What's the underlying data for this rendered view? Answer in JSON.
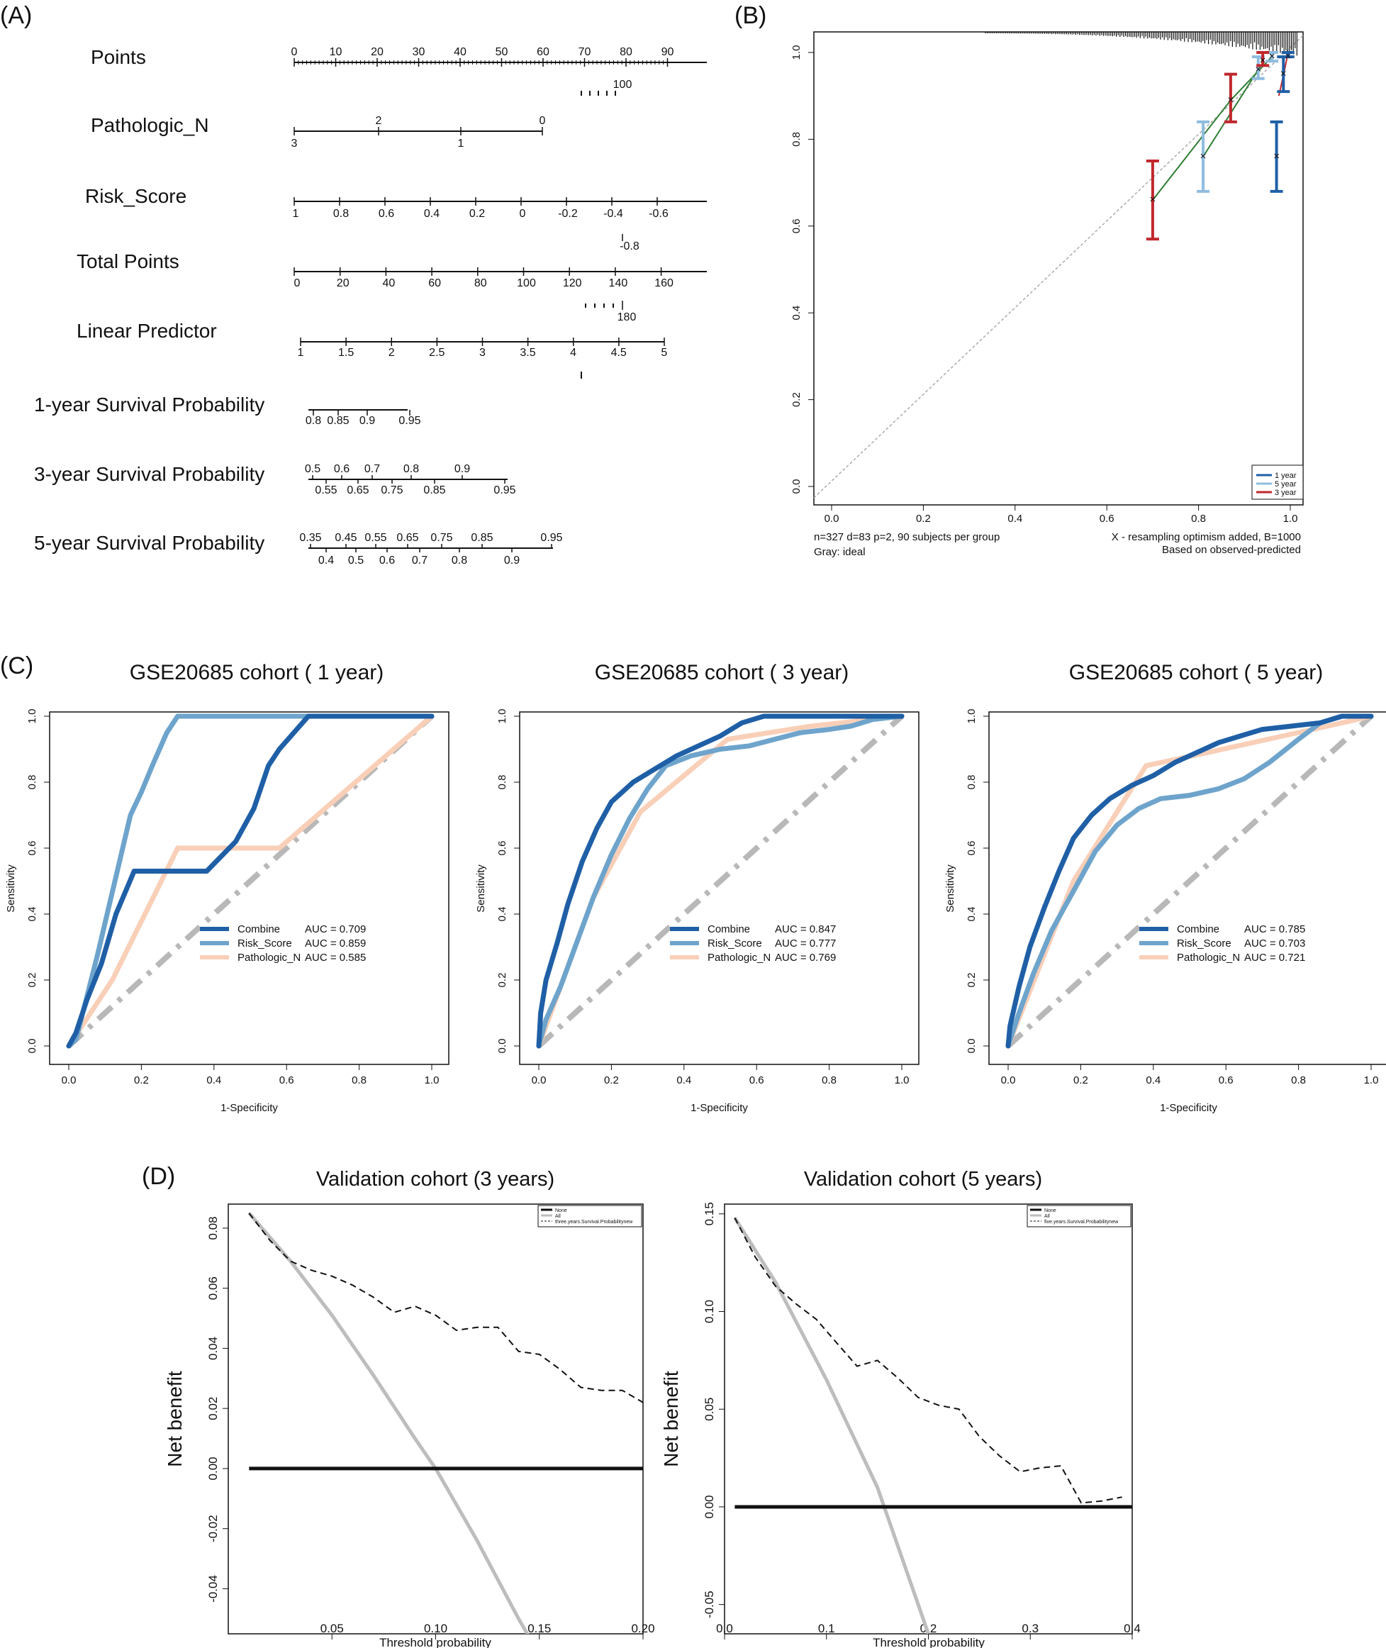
{
  "panels": {
    "A": {
      "letter": "(A)",
      "rows": [
        {
          "label": "Points",
          "ticks": [
            "0",
            "10",
            "20",
            "30",
            "40",
            "50",
            "60",
            "70",
            "80",
            "90"
          ],
          "below": [
            "100"
          ]
        },
        {
          "label": "Pathologic_N",
          "above": [
            "2",
            "0"
          ],
          "below": [
            "3",
            "1"
          ]
        },
        {
          "label": "Risk_Score",
          "below": [
            "1",
            "0.8",
            "0.6",
            "0.4",
            "0.2",
            "0",
            "-0.2",
            "-0.4",
            "-0.6"
          ],
          "extra": [
            "-0.8"
          ]
        },
        {
          "label": "Total Points",
          "below": [
            "0",
            "20",
            "40",
            "60",
            "80",
            "100",
            "120",
            "140",
            "160"
          ],
          "extra": [
            "180"
          ]
        },
        {
          "label": "Linear Predictor",
          "below": [
            "1",
            "1.5",
            "2",
            "2.5",
            "3",
            "3.5",
            "4",
            "4.5",
            "5"
          ]
        },
        {
          "label": "1-year Survival Probability",
          "below": [
            "0.8",
            "0.85",
            "0.9",
            "0.95"
          ]
        },
        {
          "label": "3-year Survival Probability",
          "above": [
            "0.5",
            "0.6",
            "0.7",
            "0.8",
            "0.9"
          ],
          "below": [
            "0.55",
            "0.65",
            "0.75",
            "0.85",
            "0.95"
          ]
        },
        {
          "label": "5-year Survival Probability",
          "above": [
            "0.35",
            "0.45",
            "0.55",
            "0.65",
            "0.75",
            "0.85",
            "0.95"
          ],
          "below": [
            "0.4",
            "0.5",
            "0.6",
            "0.7",
            "0.8",
            "0.9"
          ]
        }
      ]
    },
    "B": {
      "letter": "(B)",
      "x_ticks": [
        "0.0",
        "0.2",
        "0.4",
        "0.6",
        "0.8",
        "1.0"
      ],
      "y_ticks": [
        "0.0",
        "0.2",
        "0.4",
        "0.6",
        "0.8",
        "1.0"
      ],
      "legend": [
        "1 year",
        "5 year",
        "3 year"
      ],
      "note_left_1": "n=327 d=83 p=2, 90 subjects per group",
      "note_left_2": "Gray: ideal",
      "note_right_1": "X - resampling optimism added, B=1000",
      "note_right_2": "Based on observed-predicted"
    },
    "C": {
      "letter": "(C)"
    },
    "D": {
      "letter": "(D)"
    }
  },
  "chart_data": [
    {
      "type": "line",
      "name": "calibration",
      "xlim": [
        0,
        1
      ],
      "ylim": [
        0,
        1
      ],
      "series": [
        {
          "name": "1 year",
          "color": "#1f5fa6",
          "x": [
            0.97,
            0.985,
            0.995
          ],
          "y": [
            0.76,
            0.95,
            0.99
          ],
          "lo": [
            0.68,
            0.91,
            0.99
          ],
          "hi": [
            0.84,
            0.99,
            1.0
          ]
        },
        {
          "name": "5 year",
          "color": "#8fbcdf",
          "x": [
            0.81,
            0.93,
            0.96
          ],
          "y": [
            0.76,
            0.96,
            0.99
          ],
          "lo": [
            0.68,
            0.94,
            0.98
          ],
          "hi": [
            0.84,
            0.99,
            1.0
          ]
        },
        {
          "name": "3 year",
          "color": "#c0282d",
          "x": [
            0.7,
            0.87,
            0.94
          ],
          "y": [
            0.66,
            0.89,
            0.98
          ],
          "lo": [
            0.57,
            0.84,
            0.97
          ],
          "hi": [
            0.75,
            0.95,
            1.0
          ]
        }
      ]
    },
    {
      "type": "line",
      "name": "roc-1year",
      "title": "GSE20685 cohort ( 1 year)",
      "xlabel": "1-Specificity",
      "ylabel": "Sensitivity",
      "xlim": [
        0,
        1
      ],
      "ylim": [
        0,
        1
      ],
      "ticks": [
        "0.0",
        "0.2",
        "0.4",
        "0.6",
        "0.8",
        "1.0"
      ],
      "series": [
        {
          "name": "Combine",
          "auc": "AUC = 0.709",
          "color": "#1f5fa6",
          "x": [
            0,
            0.02,
            0.05,
            0.09,
            0.13,
            0.18,
            0.26,
            0.38,
            0.46,
            0.51,
            0.55,
            0.58,
            0.62,
            0.66,
            1.0
          ],
          "y": [
            0,
            0.04,
            0.14,
            0.25,
            0.4,
            0.53,
            0.53,
            0.53,
            0.62,
            0.72,
            0.85,
            0.9,
            0.95,
            1.0,
            1.0
          ]
        },
        {
          "name": "Risk_Score",
          "auc": "AUC = 0.859",
          "color": "#6ea4cc",
          "x": [
            0,
            0.02,
            0.05,
            0.08,
            0.11,
            0.14,
            0.17,
            0.2,
            0.23,
            0.27,
            0.3,
            1.0
          ],
          "y": [
            0,
            0.02,
            0.15,
            0.28,
            0.42,
            0.56,
            0.7,
            0.77,
            0.85,
            0.95,
            1.0,
            1.0
          ]
        },
        {
          "name": "Pathologic_N",
          "auc": "AUC = 0.585",
          "color": "#f9cfb8",
          "x": [
            0,
            0.12,
            0.3,
            0.58,
            1.0
          ],
          "y": [
            0,
            0.2,
            0.6,
            0.6,
            1.0
          ]
        }
      ]
    },
    {
      "type": "line",
      "name": "roc-3year",
      "title": "GSE20685 cohort ( 3 year)",
      "xlabel": "1-Specificity",
      "ylabel": "Sensitivity",
      "xlim": [
        0,
        1
      ],
      "ylim": [
        0,
        1
      ],
      "ticks": [
        "0.0",
        "0.2",
        "0.4",
        "0.6",
        "0.8",
        "1.0"
      ],
      "series": [
        {
          "name": "Combine",
          "auc": "AUC = 0.847",
          "color": "#1f5fa6",
          "x": [
            0,
            0.005,
            0.02,
            0.05,
            0.08,
            0.12,
            0.16,
            0.2,
            0.26,
            0.32,
            0.38,
            0.44,
            0.5,
            0.56,
            0.62,
            0.7,
            0.8,
            0.9,
            1.0
          ],
          "y": [
            0,
            0.1,
            0.2,
            0.31,
            0.43,
            0.56,
            0.66,
            0.74,
            0.8,
            0.84,
            0.88,
            0.91,
            0.94,
            0.98,
            1.0,
            1.0,
            1.0,
            1.0,
            1.0
          ]
        },
        {
          "name": "Risk_Score",
          "auc": "AUC = 0.777",
          "color": "#6ea4cc",
          "x": [
            0,
            0.02,
            0.06,
            0.1,
            0.15,
            0.2,
            0.25,
            0.3,
            0.35,
            0.42,
            0.5,
            0.58,
            0.65,
            0.72,
            0.8,
            0.86,
            0.92,
            1.0
          ],
          "y": [
            0,
            0.08,
            0.18,
            0.3,
            0.45,
            0.58,
            0.69,
            0.78,
            0.85,
            0.88,
            0.9,
            0.91,
            0.93,
            0.95,
            0.96,
            0.97,
            0.99,
            1.0
          ]
        },
        {
          "name": "Pathologic_N",
          "auc": "AUC = 0.769",
          "color": "#f9cfb8",
          "x": [
            0,
            0.15,
            0.28,
            0.52,
            0.75,
            1.0
          ],
          "y": [
            0,
            0.45,
            0.71,
            0.93,
            0.97,
            1.0
          ]
        }
      ]
    },
    {
      "type": "line",
      "name": "roc-5year",
      "title": "GSE20685 cohort ( 5 year)",
      "xlabel": "1-Specificity",
      "ylabel": "Sensitivity",
      "xlim": [
        0,
        1
      ],
      "ylim": [
        0,
        1
      ],
      "ticks": [
        "0.0",
        "0.2",
        "0.4",
        "0.6",
        "0.8",
        "1.0"
      ],
      "series": [
        {
          "name": "Combine",
          "auc": "AUC = 0.785",
          "color": "#1f5fa6",
          "x": [
            0,
            0.005,
            0.03,
            0.06,
            0.1,
            0.14,
            0.18,
            0.23,
            0.28,
            0.34,
            0.4,
            0.46,
            0.52,
            0.58,
            0.64,
            0.7,
            0.78,
            0.86,
            0.92,
            1.0
          ],
          "y": [
            0,
            0.06,
            0.18,
            0.3,
            0.42,
            0.53,
            0.63,
            0.7,
            0.75,
            0.79,
            0.82,
            0.86,
            0.89,
            0.92,
            0.94,
            0.96,
            0.97,
            0.98,
            1.0,
            1.0
          ]
        },
        {
          "name": "Risk_Score",
          "auc": "AUC = 0.703",
          "color": "#6ea4cc",
          "x": [
            0,
            0.03,
            0.07,
            0.12,
            0.18,
            0.24,
            0.3,
            0.36,
            0.42,
            0.5,
            0.58,
            0.65,
            0.72,
            0.8,
            0.86,
            0.92,
            1.0
          ],
          "y": [
            0,
            0.1,
            0.22,
            0.35,
            0.47,
            0.59,
            0.67,
            0.72,
            0.75,
            0.76,
            0.78,
            0.81,
            0.86,
            0.93,
            0.98,
            1.0,
            1.0
          ]
        },
        {
          "name": "Pathologic_N",
          "auc": "AUC = 0.721",
          "color": "#f9cfb8",
          "x": [
            0,
            0.18,
            0.38,
            0.55,
            0.88,
            1.0
          ],
          "y": [
            0,
            0.5,
            0.85,
            0.89,
            0.97,
            1.0
          ]
        }
      ]
    },
    {
      "type": "line",
      "name": "dca-3year",
      "title": "Validation cohort (3 years)",
      "xlabel": "Threshold probability",
      "ylabel": "Net benefit",
      "xlim": [
        0.0,
        0.2
      ],
      "ylim": [
        -0.055,
        0.088
      ],
      "x_ticks": [
        "0.05",
        "0.10",
        "0.15",
        "0.20"
      ],
      "y_ticks": [
        "-0.04",
        "-0.02",
        "0.00",
        "0.02",
        "0.04",
        "0.06",
        "0.08"
      ],
      "legend": [
        "None",
        "All",
        "three.years.Survival.Probabilitynew"
      ],
      "series": [
        {
          "name": "None",
          "x": [
            0.01,
            0.2
          ],
          "y": [
            0,
            0
          ]
        },
        {
          "name": "All",
          "x": [
            0.01,
            0.03,
            0.05,
            0.07,
            0.09,
            0.1,
            0.12,
            0.14,
            0.145
          ],
          "y": [
            0.085,
            0.069,
            0.051,
            0.031,
            0.01,
            0.0,
            -0.024,
            -0.05,
            -0.056
          ]
        },
        {
          "name": "three.years.Survival.Probabilitynew",
          "x": [
            0.01,
            0.02,
            0.03,
            0.04,
            0.05,
            0.06,
            0.07,
            0.08,
            0.09,
            0.1,
            0.11,
            0.12,
            0.13,
            0.14,
            0.15,
            0.16,
            0.17,
            0.18,
            0.19,
            0.2
          ],
          "y": [
            0.085,
            0.076,
            0.069,
            0.066,
            0.064,
            0.061,
            0.057,
            0.052,
            0.054,
            0.051,
            0.046,
            0.047,
            0.047,
            0.039,
            0.038,
            0.033,
            0.027,
            0.026,
            0.026,
            0.022
          ]
        }
      ]
    },
    {
      "type": "line",
      "name": "dca-5year",
      "title": "Validation cohort (5 years)",
      "xlabel": "Threshold probability",
      "ylabel": "Net benefit",
      "xlim": [
        0.0,
        0.4
      ],
      "ylim": [
        -0.065,
        0.155
      ],
      "x_ticks": [
        "0.0",
        "0.1",
        "0.2",
        "0.3",
        "0.4"
      ],
      "y_ticks": [
        "-0.05",
        "0.00",
        "0.05",
        "0.10",
        "0.15"
      ],
      "legend": [
        "None",
        "All",
        "five.years.Survival.Probabilitynew"
      ],
      "series": [
        {
          "name": "None",
          "x": [
            0.01,
            0.4
          ],
          "y": [
            0,
            0
          ]
        },
        {
          "name": "All",
          "x": [
            0.01,
            0.05,
            0.1,
            0.15,
            0.18,
            0.2
          ],
          "y": [
            0.148,
            0.115,
            0.065,
            0.01,
            -0.035,
            -0.065
          ]
        },
        {
          "name": "five.years.Survival.Probabilitynew",
          "x": [
            0.01,
            0.03,
            0.05,
            0.07,
            0.09,
            0.11,
            0.13,
            0.15,
            0.17,
            0.19,
            0.21,
            0.23,
            0.25,
            0.27,
            0.29,
            0.31,
            0.33,
            0.35,
            0.37,
            0.39
          ],
          "y": [
            0.148,
            0.128,
            0.113,
            0.104,
            0.096,
            0.084,
            0.072,
            0.075,
            0.066,
            0.056,
            0.052,
            0.05,
            0.036,
            0.026,
            0.018,
            0.02,
            0.021,
            0.002,
            0.003,
            0.005
          ]
        }
      ]
    }
  ]
}
